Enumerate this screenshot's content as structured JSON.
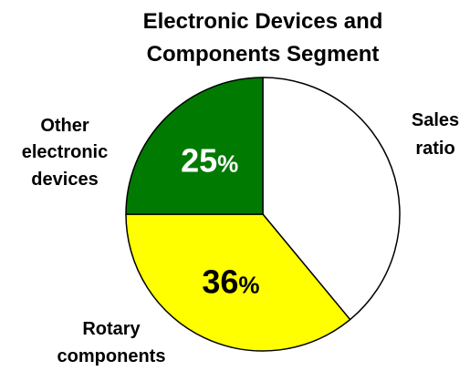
{
  "chart_data": {
    "type": "pie",
    "title_lines": [
      "Electronic Devices and",
      "Components Segment"
    ],
    "slices": [
      {
        "label_lines": [
          "Sales",
          "ratio"
        ],
        "value": 39,
        "value_label": "",
        "color": "#FFFFFF"
      },
      {
        "label_lines": [
          "Rotary",
          "components"
        ],
        "value": 36,
        "value_label": "36",
        "color": "#FFFF00"
      },
      {
        "label_lines": [
          "Other",
          "electronic",
          "devices"
        ],
        "value": 25,
        "value_label": "25",
        "color": "#007A00"
      }
    ],
    "percent_sign": "%",
    "label_colors": [
      "#000000",
      "#000000",
      "#FFFFFF"
    ],
    "legend": "none"
  }
}
